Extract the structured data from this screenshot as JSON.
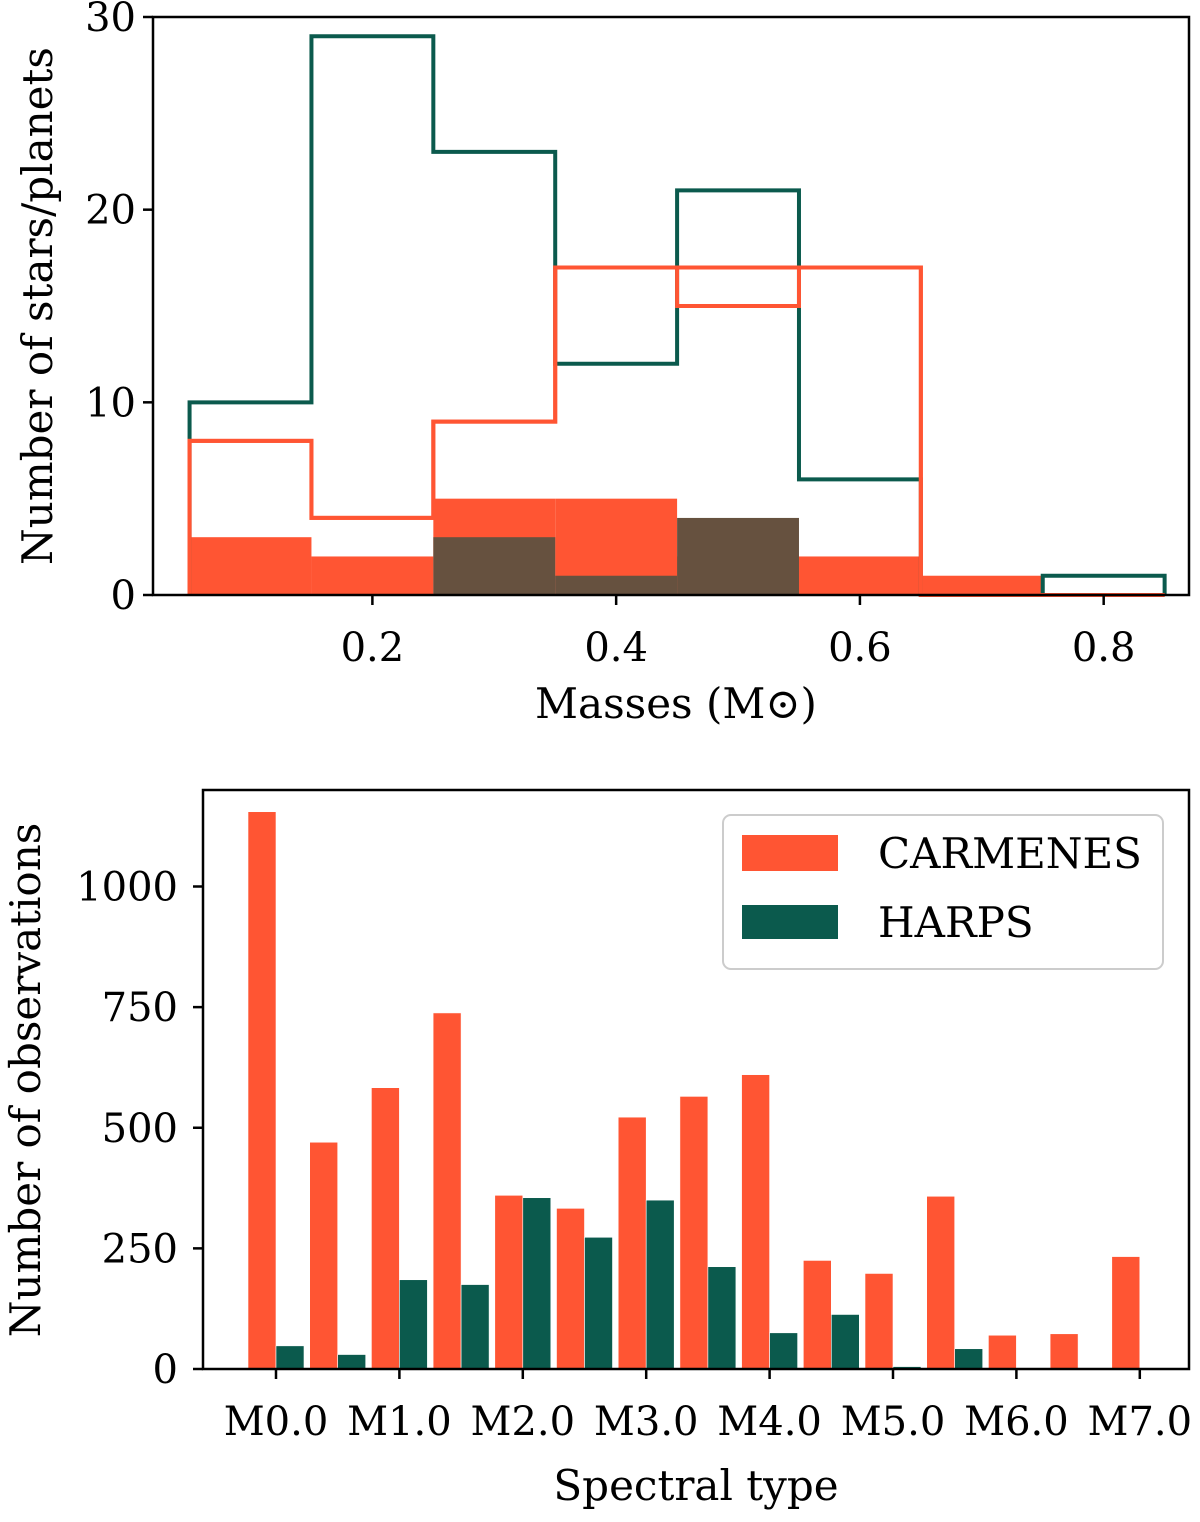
{
  "chart_data": [
    {
      "type": "histogram",
      "xlabel": "Masses (M⊙)",
      "ylabel": "Number of stars/planets",
      "xlim": [
        0.02,
        0.87
      ],
      "ylim": [
        0,
        30
      ],
      "xticks": [
        "0.2",
        "0.4",
        "0.6",
        "0.8"
      ],
      "xtick_values": [
        0.2,
        0.4,
        0.6,
        0.8
      ],
      "yticks": [
        "0",
        "10",
        "20",
        "30"
      ],
      "ytick_values": [
        0,
        10,
        20,
        30
      ],
      "bin_edges": [
        0.05,
        0.15,
        0.25,
        0.35,
        0.45,
        0.55,
        0.65,
        0.75,
        0.85
      ],
      "series": [
        {
          "name": "step-dark-green",
          "style": "step",
          "color": "#0b5a4d",
          "values": [
            10,
            29,
            23,
            12,
            21,
            6,
            0,
            1
          ]
        },
        {
          "name": "step-orange-1",
          "style": "step",
          "color": "#ff5533",
          "values": [
            8,
            4,
            9,
            17,
            17,
            17,
            0,
            0
          ]
        },
        {
          "name": "step-orange-2",
          "style": "step",
          "color": "#ff5533",
          "values": [
            8,
            4,
            9,
            17,
            15,
            17,
            0,
            0
          ]
        },
        {
          "name": "filled-orange",
          "style": "filled",
          "color": "#ff5533",
          "values": [
            3,
            2,
            5,
            5,
            2,
            2,
            1,
            0
          ]
        },
        {
          "name": "filled-brown",
          "style": "filled",
          "color": "#66513f",
          "values": [
            0,
            0,
            3,
            1,
            4,
            0,
            0,
            0
          ]
        }
      ]
    },
    {
      "type": "bar",
      "xlabel": "Spectral type",
      "ylabel": "Number of observations",
      "categories": [
        "M0.0",
        "M0.5",
        "M1.0",
        "M1.5",
        "M2.0",
        "M2.5",
        "M3.0",
        "M3.5",
        "M4.0",
        "M4.5",
        "M5.0",
        "M5.5",
        "M6.0",
        "M6.5",
        "M7.0"
      ],
      "xtick_labels": [
        "M0.0",
        "M1.0",
        "M2.0",
        "M3.0",
        "M4.0",
        "M5.0",
        "M6.0",
        "M7.0"
      ],
      "ylim": [
        0,
        1200
      ],
      "yticks": [
        "0",
        "250",
        "500",
        "750",
        "1000"
      ],
      "ytick_values": [
        0,
        250,
        500,
        750,
        1000
      ],
      "legend": {
        "position": "top-right",
        "entries": [
          "CARMENES",
          "HARPS"
        ]
      },
      "series": [
        {
          "name": "CARMENES",
          "color": "#ff5533",
          "values": [
            1155,
            470,
            583,
            738,
            360,
            333,
            522,
            565,
            610,
            225,
            198,
            358,
            70,
            73,
            233
          ]
        },
        {
          "name": "HARPS",
          "color": "#0b5a4d",
          "values": [
            48,
            30,
            185,
            175,
            355,
            273,
            350,
            212,
            75,
            113,
            5,
            42,
            0,
            0,
            0
          ]
        }
      ]
    }
  ]
}
